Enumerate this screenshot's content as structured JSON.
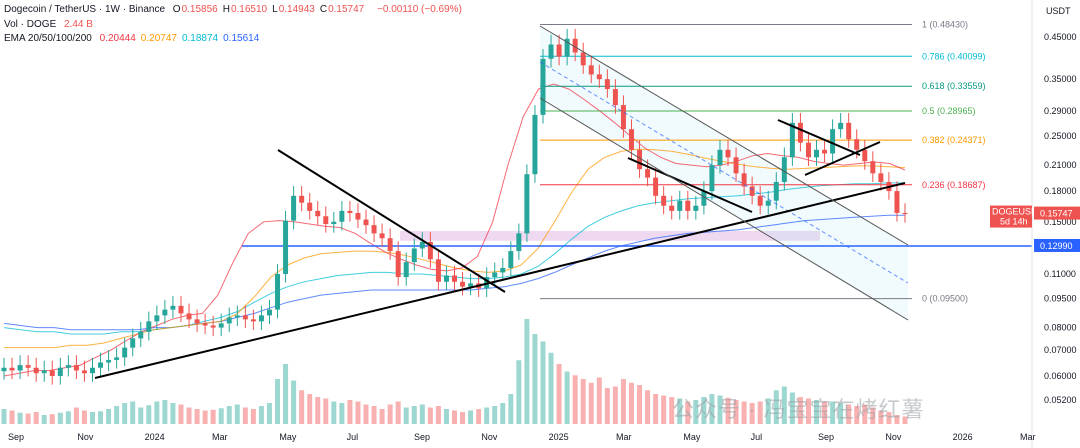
{
  "header": {
    "symbol": "Dogecoin / TetherUS · 1W · Binance",
    "ohlc": [
      {
        "k": "O",
        "v": "0.15856"
      },
      {
        "k": "H",
        "v": "0.16510"
      },
      {
        "k": "L",
        "v": "0.14943"
      },
      {
        "k": "C",
        "v": "0.15747"
      }
    ],
    "change": "−0.00110 (−0.69%)",
    "vol_label": "Vol · DOGE",
    "vol_value": "2.44 B",
    "ema_label": "EMA 20/50/100/200",
    "ema_values": [
      {
        "v": "0.20444",
        "color": "#f23645"
      },
      {
        "v": "0.20747",
        "color": "#ff9800"
      },
      {
        "v": "0.18874",
        "color": "#00bcd4"
      },
      {
        "v": "0.15614",
        "color": "#2962ff"
      }
    ]
  },
  "colors": {
    "up": "#26a69a",
    "down": "#ef5350",
    "line": "#000000",
    "hline": "#2962ff"
  },
  "chart_data": {
    "type": "candlestick",
    "y_axis_title": "USDT",
    "ylim": [
      0.042,
      0.48
    ],
    "y_ticks": [
      "0.45000",
      "0.35000",
      "0.29000",
      "0.25000",
      "0.21000",
      "0.18000",
      "0.15000",
      "0.13000",
      "0.11000",
      "0.09500",
      "0.08000",
      "0.07000",
      "0.06000",
      "0.05200"
    ],
    "x_ticks": [
      "Sep",
      "Nov",
      "2024",
      "Mar",
      "May",
      "Jul",
      "Sep",
      "Nov",
      "2025",
      "Mar",
      "May",
      "Jul",
      "Sep",
      "Nov",
      "2026",
      "Mar"
    ],
    "fib_levels": [
      {
        "label": "1 (0.48430)",
        "price": 0.4843,
        "color": "#787b86"
      },
      {
        "label": "0.786 (0.40099)",
        "price": 0.40099,
        "color": "#00bcd4"
      },
      {
        "label": "0.618 (0.33559)",
        "price": 0.33559,
        "color": "#089981"
      },
      {
        "label": "0.5 (0.28965)",
        "price": 0.28965,
        "color": "#4caf50"
      },
      {
        "label": "0.382 (0.24371)",
        "price": 0.24371,
        "color": "#ff9800"
      },
      {
        "label": "0.236 (0.18687)",
        "price": 0.18687,
        "color": "#f23645"
      },
      {
        "label": "0 (0.09500)",
        "price": 0.095,
        "color": "#787b86"
      }
    ],
    "price_tags": [
      {
        "label": "DOGEUSDT",
        "value": "0.15747",
        "sub": "5d 14h",
        "price": 0.15747,
        "color": "#ef5350"
      },
      {
        "label": "",
        "value": "0.12990",
        "sub": "",
        "price": 0.1299,
        "color": "#2962ff"
      }
    ],
    "horizontal_line": 0.1299,
    "candles_close": [
      0.063,
      0.062,
      0.064,
      0.063,
      0.061,
      0.062,
      0.06,
      0.063,
      0.064,
      0.062,
      0.061,
      0.063,
      0.065,
      0.066,
      0.067,
      0.071,
      0.075,
      0.078,
      0.083,
      0.086,
      0.089,
      0.091,
      0.087,
      0.084,
      0.082,
      0.081,
      0.08,
      0.082,
      0.085,
      0.086,
      0.084,
      0.083,
      0.086,
      0.089,
      0.11,
      0.151,
      0.175,
      0.168,
      0.16,
      0.155,
      0.148,
      0.15,
      0.16,
      0.158,
      0.152,
      0.147,
      0.14,
      0.136,
      0.126,
      0.108,
      0.118,
      0.128,
      0.133,
      0.12,
      0.105,
      0.109,
      0.105,
      0.102,
      0.104,
      0.101,
      0.108,
      0.111,
      0.114,
      0.126,
      0.14,
      0.199,
      0.283,
      0.395,
      0.43,
      0.4,
      0.445,
      0.41,
      0.38,
      0.36,
      0.35,
      0.33,
      0.3,
      0.26,
      0.23,
      0.205,
      0.195,
      0.175,
      0.165,
      0.16,
      0.17,
      0.16,
      0.165,
      0.18,
      0.21,
      0.23,
      0.22,
      0.2,
      0.185,
      0.175,
      0.165,
      0.17,
      0.19,
      0.22,
      0.27,
      0.24,
      0.22,
      0.23,
      0.225,
      0.26,
      0.27,
      0.245,
      0.23,
      0.215,
      0.2,
      0.19,
      0.18,
      0.158,
      0.157
    ],
    "volume": [
      20,
      18,
      15,
      14,
      16,
      12,
      13,
      15,
      17,
      22,
      18,
      16,
      17,
      20,
      24,
      28,
      30,
      22,
      25,
      30,
      32,
      28,
      26,
      22,
      20,
      18,
      19,
      21,
      24,
      26,
      22,
      20,
      24,
      28,
      60,
      80,
      58,
      45,
      40,
      36,
      34,
      30,
      28,
      32,
      30,
      26,
      24,
      20,
      26,
      30,
      22,
      24,
      26,
      22,
      24,
      20,
      18,
      16,
      18,
      20,
      22,
      24,
      28,
      40,
      85,
      140,
      120,
      110,
      95,
      80,
      70,
      65,
      60,
      55,
      62,
      48,
      50,
      60,
      55,
      52,
      45,
      40,
      38,
      36,
      34,
      30,
      32,
      36,
      40,
      38,
      35,
      32,
      30,
      28,
      30,
      34,
      45,
      50,
      42,
      36,
      34,
      32,
      30,
      30,
      28,
      26,
      24,
      26,
      22,
      18,
      16,
      12,
      10
    ],
    "ema20": [
      0.06,
      0.061,
      0.062,
      0.062,
      0.063,
      0.064,
      0.067,
      0.07,
      0.074,
      0.078,
      0.081,
      0.084,
      0.086,
      0.087,
      0.097,
      0.118,
      0.14,
      0.15,
      0.151,
      0.15,
      0.148,
      0.146,
      0.145,
      0.14,
      0.132,
      0.125,
      0.12,
      0.116,
      0.113,
      0.112,
      0.114,
      0.122,
      0.15,
      0.21,
      0.28,
      0.33,
      0.34,
      0.33,
      0.31,
      0.29,
      0.27,
      0.25,
      0.232,
      0.22,
      0.212,
      0.21,
      0.208,
      0.21,
      0.215,
      0.222,
      0.225,
      0.222,
      0.22,
      0.215,
      0.212,
      0.21,
      0.212,
      0.214,
      0.212,
      0.204
    ],
    "ema50": [
      0.071,
      0.071,
      0.071,
      0.071,
      0.072,
      0.072,
      0.073,
      0.075,
      0.077,
      0.079,
      0.08,
      0.081,
      0.082,
      0.083,
      0.087,
      0.096,
      0.108,
      0.116,
      0.121,
      0.124,
      0.125,
      0.126,
      0.126,
      0.125,
      0.123,
      0.12,
      0.117,
      0.114,
      0.112,
      0.111,
      0.112,
      0.116,
      0.128,
      0.15,
      0.178,
      0.205,
      0.22,
      0.228,
      0.231,
      0.23,
      0.228,
      0.224,
      0.219,
      0.215,
      0.211,
      0.208,
      0.206,
      0.205,
      0.206,
      0.207,
      0.208,
      0.209,
      0.209,
      0.208,
      0.207
    ],
    "ema100": [
      0.08,
      0.079,
      0.078,
      0.078,
      0.077,
      0.077,
      0.077,
      0.078,
      0.078,
      0.079,
      0.08,
      0.081,
      0.083,
      0.085,
      0.088,
      0.093,
      0.098,
      0.102,
      0.105,
      0.107,
      0.109,
      0.11,
      0.111,
      0.111,
      0.11,
      0.11,
      0.109,
      0.108,
      0.107,
      0.107,
      0.108,
      0.11,
      0.115,
      0.124,
      0.135,
      0.146,
      0.154,
      0.16,
      0.165,
      0.168,
      0.17,
      0.172,
      0.173,
      0.174,
      0.175,
      0.177,
      0.179,
      0.182,
      0.184,
      0.186,
      0.187,
      0.188,
      0.188,
      0.189,
      0.189
    ],
    "ema200": [
      0.082,
      0.081,
      0.08,
      0.08,
      0.079,
      0.079,
      0.079,
      0.079,
      0.079,
      0.08,
      0.08,
      0.081,
      0.082,
      0.083,
      0.085,
      0.087,
      0.09,
      0.093,
      0.095,
      0.097,
      0.098,
      0.099,
      0.1,
      0.1,
      0.1,
      0.1,
      0.1,
      0.1,
      0.1,
      0.101,
      0.102,
      0.104,
      0.107,
      0.111,
      0.116,
      0.121,
      0.126,
      0.13,
      0.133,
      0.136,
      0.138,
      0.14,
      0.141,
      0.142,
      0.143,
      0.145,
      0.147,
      0.149,
      0.151,
      0.152,
      0.153,
      0.154,
      0.155,
      0.156,
      0.156
    ]
  },
  "watermark": "公众号 · 冯宝宝在烤红薯"
}
